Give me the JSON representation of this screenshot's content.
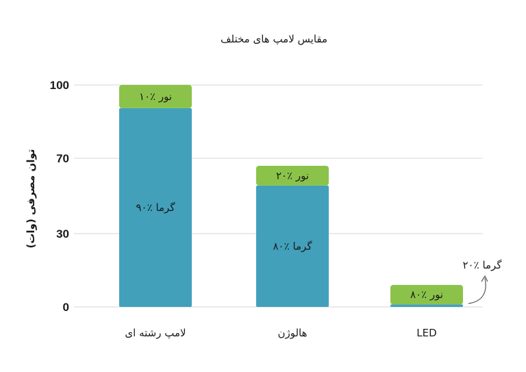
{
  "chart_data": {
    "type": "bar",
    "stacked": true,
    "title": "مقایس لامپ های مختلف",
    "ylabel": "توان مصرفی (وات)",
    "xlabel": "",
    "yticks": [
      "0",
      "30",
      "70",
      "100"
    ],
    "ylim": [
      0,
      100
    ],
    "grid": true,
    "categories": [
      "لامپ رشته ای",
      "هالوژن",
      "LED"
    ],
    "series": [
      {
        "values": [
          90.5,
          55.5,
          1
        ],
        "color": "#42a0bb",
        "labels": [
          "۹۰٪ گرما",
          "۸۰٪ گرما",
          ""
        ]
      },
      {
        "values": [
          9.5,
          10.5,
          8
        ],
        "color": "#8bc34a",
        "labels": [
          "۱۰٪ نور",
          "۲۰٪ نور",
          "۸۰٪ نور"
        ]
      }
    ],
    "annotations": [
      {
        "text": "۲۰٪ گرما",
        "target_category": "LED"
      }
    ]
  }
}
